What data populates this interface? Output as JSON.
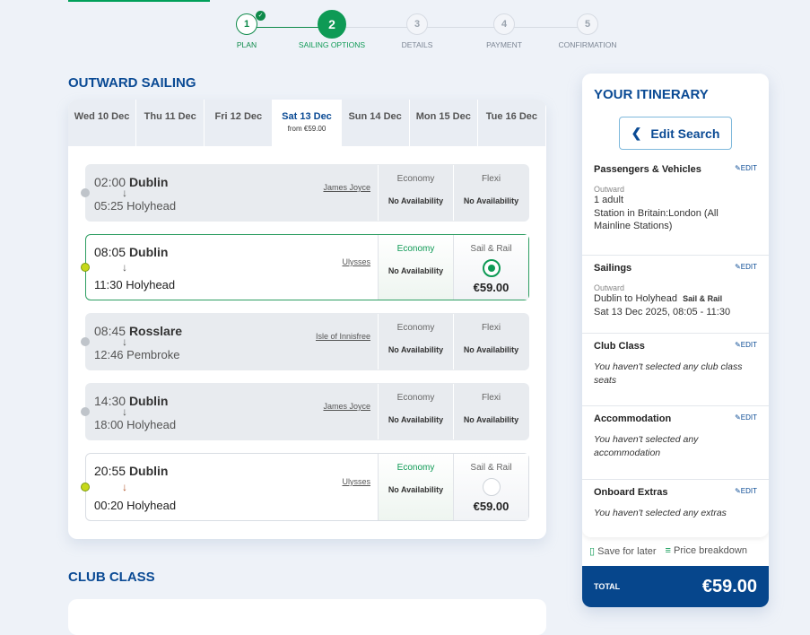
{
  "steps": [
    {
      "num": "1",
      "label": "PLAN",
      "state": "done"
    },
    {
      "num": "2",
      "label": "SAILING OPTIONS",
      "state": "active"
    },
    {
      "num": "3",
      "label": "DETAILS",
      "state": "todo"
    },
    {
      "num": "4",
      "label": "PAYMENT",
      "state": "todo"
    },
    {
      "num": "5",
      "label": "CONFIRMATION",
      "state": "todo"
    }
  ],
  "outward": {
    "title": "OUTWARD SAILING",
    "dates": [
      {
        "label": "Wed 10 Dec"
      },
      {
        "label": "Thu 11 Dec"
      },
      {
        "label": "Fri 12 Dec"
      },
      {
        "label": "Sat 13 Dec",
        "from": "from €59.00",
        "active": true
      },
      {
        "label": "Sun 14 Dec"
      },
      {
        "label": "Mon 15 Dec"
      },
      {
        "label": "Tue 16 Dec"
      }
    ],
    "sailings": [
      {
        "dep": "02:00",
        "from": "Dublin",
        "arr": "05:25",
        "to": "Holyhead",
        "ship": "James Joyce",
        "fare1": "Economy",
        "fare1_value": "No Availability",
        "fare2": "Flexi",
        "fare2_value": "No Availability",
        "available": false
      },
      {
        "dep": "08:05",
        "from": "Dublin",
        "arr": "11:30",
        "to": "Holyhead",
        "ship": "Ulysses",
        "fare1": "Economy",
        "fare1_value": "No Availability",
        "fare2": "Sail & Rail",
        "fare2_value": "€59.00",
        "available": true,
        "selected": true
      },
      {
        "dep": "08:45",
        "from": "Rosslare",
        "arr": "12:46",
        "to": "Pembroke",
        "ship": "Isle of Innisfree",
        "fare1": "Economy",
        "fare1_value": "No Availability",
        "fare2": "Flexi",
        "fare2_value": "No Availability",
        "available": false
      },
      {
        "dep": "14:30",
        "from": "Dublin",
        "arr": "18:00",
        "to": "Holyhead",
        "ship": "James Joyce",
        "fare1": "Economy",
        "fare1_value": "No Availability",
        "fare2": "Flexi",
        "fare2_value": "No Availability",
        "available": false
      },
      {
        "dep": "20:55",
        "from": "Dublin",
        "arr": "00:20",
        "to": "Holyhead",
        "ship": "Ulysses",
        "fare1": "Economy",
        "fare1_value": "No Availability",
        "fare2": "Sail & Rail",
        "fare2_value": "€59.00",
        "available": true,
        "selected": false
      }
    ]
  },
  "club_class": {
    "title": "CLUB CLASS"
  },
  "itinerary": {
    "title": "YOUR ITINERARY",
    "edit_search": "Edit Search",
    "edit_label": "EDIT",
    "passengers": {
      "title": "Passengers & Vehicles",
      "sub": "Outward",
      "line1": "1 adult",
      "line2": "Station in Britain:London (All Mainline Stations)"
    },
    "sailings": {
      "title": "Sailings",
      "sub": "Outward",
      "route": "Dublin to Holyhead",
      "fare": "Sail & Rail",
      "when": "Sat 13 Dec 2025, 08:05 - 11:30"
    },
    "club": {
      "title": "Club Class",
      "text": "You haven't selected any club class seats"
    },
    "accommodation": {
      "title": "Accommodation",
      "text": "You haven't selected any accommodation"
    },
    "extras": {
      "title": "Onboard Extras",
      "text": "You haven't selected any extras"
    },
    "save": "Save for later",
    "breakdown": "Price breakdown",
    "total_label": "TOTAL",
    "total": "€59.00"
  },
  "colors": {
    "brand": "#0a4a94",
    "accent": "#0e9a55",
    "total_bg": "#06468c"
  }
}
